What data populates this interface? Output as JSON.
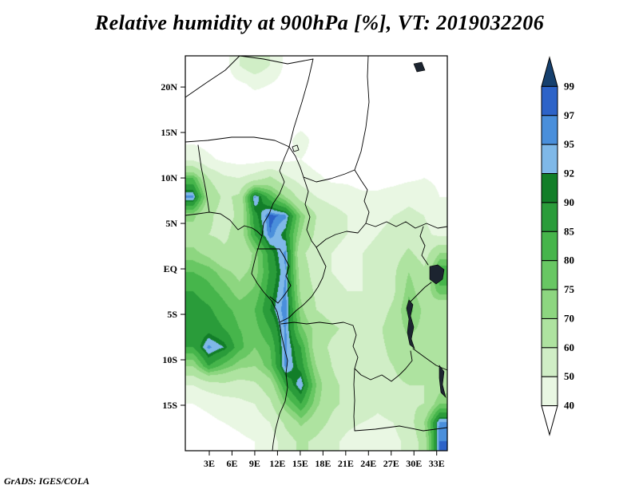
{
  "title": "Relative humidity at 900hPa [%], VT: 2019032206",
  "attribution": "GrADS: IGES/COLA",
  "chart_data": {
    "type": "heatmap",
    "title": "Relative humidity at 900hPa [%], VT: 2019032206",
    "variable": "Relative humidity [%]",
    "level": "900hPa",
    "valid_time": "2019032206",
    "x_axis": {
      "labels": [
        "3E",
        "6E",
        "9E",
        "12E",
        "15E",
        "18E",
        "21E",
        "24E",
        "27E",
        "30E",
        "33E"
      ],
      "lons": [
        3,
        6,
        9,
        12,
        15,
        18,
        21,
        24,
        27,
        30,
        33
      ]
    },
    "y_axis": {
      "labels": [
        "20N",
        "15N",
        "10N",
        "5N",
        "EQ",
        "5S",
        "10S",
        "15S"
      ],
      "lats": [
        20,
        15,
        10,
        5,
        0,
        -5,
        -10,
        -15
      ]
    },
    "lon_range": [
      -0.16,
      34.4
    ],
    "lat_range": [
      23.43,
      -20.0
    ],
    "levels": [
      40,
      50,
      60,
      70,
      75,
      80,
      85,
      90,
      92,
      95,
      97,
      99
    ],
    "colors": [
      "#ffffff",
      "#e9f7e3",
      "#d0eec6",
      "#aee3a0",
      "#8dd680",
      "#68c763",
      "#46b54b",
      "#2a9c3a",
      "#127e28",
      "#7fb8e8",
      "#4a8fdb",
      "#2d63c8",
      "#16406e"
    ],
    "colorbar_labels": [
      "99",
      "97",
      "95",
      "92",
      "90",
      "85",
      "80",
      "75",
      "70",
      "60",
      "50",
      "40"
    ],
    "grid": {
      "description": "Estimated relative humidity (%) on a coarse grid; row 0 = north (lat 23.4N), col 0 = west (lon 0E); 2 deg spacing",
      "nlon": 17,
      "nlat": 21,
      "values": [
        [
          35,
          35,
          35,
          50,
          58,
          50,
          38,
          35,
          35,
          35,
          35,
          35,
          35,
          35,
          35,
          35,
          35
        ],
        [
          35,
          35,
          35,
          38,
          42,
          40,
          36,
          35,
          35,
          35,
          35,
          35,
          35,
          35,
          35,
          35,
          35
        ],
        [
          35,
          35,
          35,
          35,
          36,
          36,
          35,
          35,
          35,
          35,
          35,
          35,
          35,
          35,
          35,
          35,
          35
        ],
        [
          36,
          35,
          35,
          35,
          35,
          35,
          35,
          35,
          35,
          35,
          35,
          35,
          35,
          35,
          35,
          35,
          35
        ],
        [
          38,
          36,
          35,
          35,
          35,
          36,
          36,
          45,
          36,
          35,
          35,
          35,
          35,
          35,
          35,
          35,
          35
        ],
        [
          48,
          42,
          38,
          36,
          36,
          38,
          38,
          40,
          36,
          35,
          35,
          35,
          35,
          35,
          35,
          36,
          35
        ],
        [
          80,
          60,
          52,
          50,
          55,
          62,
          52,
          46,
          42,
          38,
          38,
          36,
          36,
          36,
          38,
          40,
          38
        ],
        [
          96,
          68,
          58,
          62,
          96,
          82,
          70,
          56,
          50,
          46,
          44,
          42,
          42,
          45,
          48,
          46,
          40
        ],
        [
          72,
          62,
          56,
          62,
          88,
          98,
          96,
          74,
          60,
          55,
          50,
          48,
          48,
          50,
          52,
          50,
          45
        ],
        [
          66,
          60,
          58,
          64,
          85,
          97,
          90,
          70,
          58,
          52,
          50,
          48,
          50,
          52,
          55,
          52,
          48
        ],
        [
          72,
          68,
          62,
          60,
          72,
          88,
          96,
          62,
          55,
          50,
          48,
          50,
          52,
          55,
          62,
          55,
          70
        ],
        [
          80,
          78,
          72,
          68,
          72,
          86,
          95,
          66,
          55,
          50,
          48,
          50,
          52,
          58,
          70,
          62,
          85
        ],
        [
          85,
          82,
          78,
          72,
          76,
          88,
          96,
          68,
          58,
          52,
          50,
          50,
          52,
          58,
          74,
          64,
          78
        ],
        [
          88,
          86,
          82,
          78,
          80,
          90,
          97,
          72,
          60,
          55,
          52,
          52,
          55,
          62,
          78,
          68,
          62
        ],
        [
          85,
          88,
          85,
          80,
          78,
          85,
          96,
          76,
          68,
          62,
          58,
          56,
          58,
          65,
          72,
          68,
          60
        ],
        [
          85,
          96,
          92,
          82,
          75,
          80,
          96,
          85,
          65,
          58,
          55,
          55,
          58,
          62,
          68,
          65,
          62
        ],
        [
          70,
          85,
          78,
          72,
          70,
          78,
          96,
          88,
          70,
          60,
          55,
          55,
          58,
          60,
          65,
          62,
          60
        ],
        [
          50,
          55,
          58,
          55,
          58,
          66,
          85,
          95,
          75,
          62,
          58,
          55,
          55,
          58,
          60,
          60,
          66
        ],
        [
          40,
          42,
          45,
          48,
          50,
          58,
          75,
          85,
          72,
          62,
          58,
          55,
          52,
          55,
          58,
          60,
          75
        ],
        [
          36,
          38,
          40,
          42,
          45,
          50,
          62,
          72,
          65,
          58,
          52,
          50,
          48,
          50,
          55,
          70,
          96
        ],
        [
          35,
          35,
          36,
          38,
          40,
          45,
          55,
          62,
          58,
          52,
          48,
          45,
          45,
          48,
          52,
          65,
          97
        ]
      ]
    }
  }
}
